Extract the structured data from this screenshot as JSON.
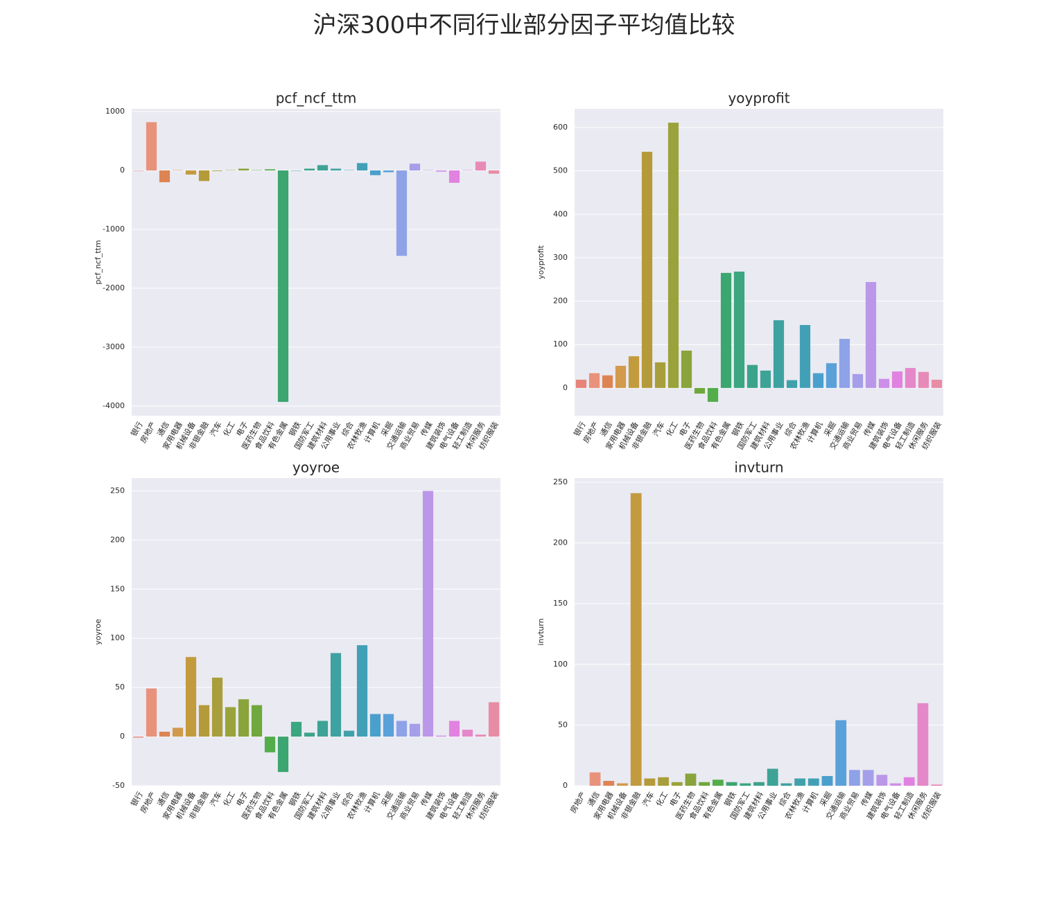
{
  "title": "沪深300中不同行业部分因子平均值比较",
  "chart_data": [
    {
      "type": "bar",
      "title": "pcf_ncf_ttm",
      "ylabel": "pcf_ncf_ttm",
      "categories": [
        "银行",
        "房地产",
        "通信",
        "家用电器",
        "机械设备",
        "非银金融",
        "汽车",
        "化工",
        "电子",
        "医药生物",
        "食品饮料",
        "有色金属",
        "钢铁",
        "国防军工",
        "建筑材料",
        "公用事业",
        "综合",
        "农林牧渔",
        "计算机",
        "采掘",
        "交通运输",
        "商业贸易",
        "传媒",
        "建筑装饰",
        "电气设备",
        "轻工制造",
        "休闲服务",
        "纺织服装"
      ],
      "values": [
        -5,
        820,
        -200,
        5,
        -70,
        -180,
        -10,
        5,
        30,
        5,
        20,
        -3930,
        -5,
        30,
        90,
        30,
        5,
        125,
        -80,
        -30,
        -1450,
        115,
        5,
        -20,
        -210,
        5,
        150,
        -55
      ],
      "colors": [
        "#e8837a",
        "#e8927c",
        "#dd8452",
        "#d19a4c",
        "#c39b3f",
        "#b59a3a",
        "#a89e3b",
        "#9aa33b",
        "#89a43b",
        "#6fa83c",
        "#53ad4b",
        "#3ba66f",
        "#3ba67f",
        "#3ca38b",
        "#3da396",
        "#3ea2a1",
        "#40a1ab",
        "#42a0b6",
        "#4aa0cc",
        "#5aa0d9",
        "#8ea2e8",
        "#a59ee9",
        "#bb97e9",
        "#cd8fe8",
        "#e282e0",
        "#e588c9",
        "#e88ab8",
        "#e88ca5"
      ],
      "ylim": [
        -4165,
        1047
      ],
      "yticks": [
        -4000,
        -3000,
        -2000,
        -1000,
        0,
        1000
      ],
      "grid": true
    },
    {
      "type": "bar",
      "title": "yoyprofit",
      "ylabel": "yoyprofit",
      "categories": [
        "银行",
        "房地产",
        "通信",
        "家用电器",
        "机械设备",
        "非银金融",
        "汽车",
        "化工",
        "电子",
        "医药生物",
        "食品饮料",
        "有色金属",
        "钢铁",
        "国防军工",
        "建筑材料",
        "公用事业",
        "综合",
        "农林牧渔",
        "计算机",
        "采掘",
        "交通运输",
        "商业贸易",
        "传媒",
        "建筑装饰",
        "电气设备",
        "轻工制造",
        "休闲服务",
        "纺织服装"
      ],
      "values": [
        19,
        34,
        29,
        51,
        73,
        544,
        59,
        611,
        86,
        -13,
        -32,
        265,
        268,
        53,
        40,
        156,
        18,
        145,
        34,
        57,
        113,
        32,
        244,
        21,
        38,
        46,
        37,
        19
      ],
      "colors": [
        "#e8837a",
        "#e8927c",
        "#dd8452",
        "#d19a4c",
        "#c39b3f",
        "#b59a3a",
        "#a89e3b",
        "#9aa33b",
        "#89a43b",
        "#6fa83c",
        "#53ad4b",
        "#3ba66f",
        "#3ba67f",
        "#3ca38b",
        "#3da396",
        "#3ea2a1",
        "#40a1ab",
        "#42a0b6",
        "#4aa0cc",
        "#5aa0d9",
        "#8ea2e8",
        "#a59ee9",
        "#bb97e9",
        "#cd8fe8",
        "#e282e0",
        "#e588c9",
        "#e88ab8",
        "#e88ca5"
      ],
      "ylim": [
        -64,
        643
      ],
      "yticks": [
        0,
        100,
        200,
        300,
        400,
        500,
        600
      ],
      "grid": true
    },
    {
      "type": "bar",
      "title": "yoyroe",
      "ylabel": "yoyroe",
      "categories": [
        "银行",
        "房地产",
        "通信",
        "家用电器",
        "机械设备",
        "非银金融",
        "汽车",
        "化工",
        "电子",
        "医药生物",
        "食品饮料",
        "有色金属",
        "钢铁",
        "国防军工",
        "建筑材料",
        "公用事业",
        "综合",
        "农林牧渔",
        "计算机",
        "采掘",
        "交通运输",
        "商业贸易",
        "传媒",
        "建筑装饰",
        "电气设备",
        "轻工制造",
        "休闲服务",
        "纺织服装"
      ],
      "values": [
        -1,
        49,
        5,
        9,
        81,
        32,
        60,
        30,
        38,
        32,
        -16,
        -36,
        15,
        4,
        16,
        85,
        6,
        93,
        23,
        23,
        16,
        13,
        250,
        1,
        16,
        7,
        2,
        35
      ],
      "colors": [
        "#e8837a",
        "#e8927c",
        "#dd8452",
        "#d19a4c",
        "#c39b3f",
        "#b59a3a",
        "#a89e3b",
        "#9aa33b",
        "#89a43b",
        "#6fa83c",
        "#53ad4b",
        "#3ba66f",
        "#3ba67f",
        "#3ca38b",
        "#3da396",
        "#3ea2a1",
        "#40a1ab",
        "#42a0b6",
        "#4aa0cc",
        "#5aa0d9",
        "#8ea2e8",
        "#a59ee9",
        "#bb97e9",
        "#cd8fe8",
        "#e282e0",
        "#e588c9",
        "#e88ab8",
        "#e88ca5"
      ],
      "ylim": [
        -50,
        263
      ],
      "yticks": [
        -50,
        0,
        50,
        100,
        150,
        200,
        250
      ],
      "grid": true
    },
    {
      "type": "bar",
      "title": "invturn",
      "ylabel": "invturn",
      "categories": [
        "房地产",
        "通信",
        "家用电器",
        "机械设备",
        "非银金融",
        "汽车",
        "化工",
        "电子",
        "医药生物",
        "食品饮料",
        "有色金属",
        "钢铁",
        "国防军工",
        "建筑材料",
        "公用事业",
        "综合",
        "农林牧渔",
        "计算机",
        "采掘",
        "交通运输",
        "商业贸易",
        "传媒",
        "建筑装饰",
        "电气设备",
        "轻工制造",
        "休闲服务",
        "纺织服装"
      ],
      "values": [
        0,
        11,
        4,
        2,
        241,
        6,
        7,
        3,
        10,
        3,
        5,
        3,
        2,
        3,
        14,
        2,
        6,
        6,
        8,
        54,
        13,
        13,
        9,
        2,
        7,
        68,
        1
      ],
      "colors": [
        "#e8837a",
        "#e8927c",
        "#dd8452",
        "#d19a4c",
        "#c39b3f",
        "#b59a3a",
        "#a89e3b",
        "#9aa33b",
        "#89a43b",
        "#6fa83c",
        "#53ad4b",
        "#3ba66f",
        "#3ba67f",
        "#3ca38b",
        "#3da396",
        "#3ea2a1",
        "#40a1ab",
        "#42a0b6",
        "#4aa0cc",
        "#5aa0d9",
        "#8ea2e8",
        "#a59ee9",
        "#bb97e9",
        "#cd8fe8",
        "#e282e0",
        "#e588c9",
        "#e88ab8"
      ],
      "ylim": [
        0,
        253.4
      ],
      "yticks": [
        0,
        50,
        100,
        150,
        200,
        250
      ],
      "grid": true
    }
  ]
}
